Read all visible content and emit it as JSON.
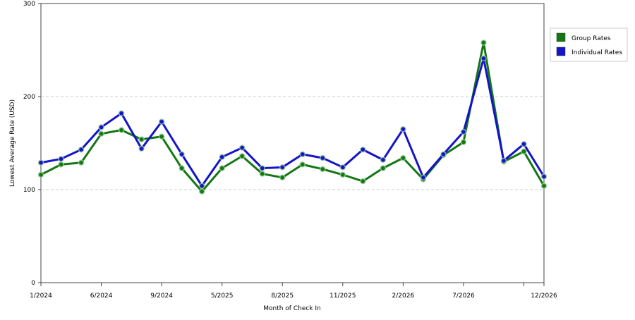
{
  "chart_data": {
    "type": "line",
    "x_label": "Month of Check In",
    "y_label": "Lowest Average Rate (USD)",
    "categories": [
      "1/2024",
      null,
      null,
      "6/2024",
      null,
      null,
      "9/2024",
      null,
      null,
      "5/2025",
      null,
      null,
      "8/2025",
      null,
      null,
      "11/2025",
      null,
      null,
      "2/2026",
      null,
      null,
      "7/2026",
      null,
      null,
      null,
      "12/2026"
    ],
    "series": [
      {
        "name": "Group Rates",
        "color": "#137813",
        "values": [
          116,
          127,
          129,
          160,
          164,
          154,
          157,
          123,
          98,
          123,
          136,
          117,
          113,
          127,
          122,
          116,
          109,
          123,
          134,
          111,
          137,
          151,
          258,
          130,
          141,
          104
        ]
      },
      {
        "name": "Individual Rates",
        "color": "#1414c8",
        "values": [
          129,
          133,
          143,
          167,
          182,
          144,
          173,
          138,
          104,
          135,
          145,
          123,
          124,
          138,
          134,
          124,
          143,
          132,
          165,
          113,
          138,
          162,
          241,
          131,
          149,
          114
        ]
      }
    ],
    "ylim": [
      0,
      300
    ],
    "yticks": [
      0,
      100,
      200,
      300
    ],
    "grid": true,
    "legend": "right"
  }
}
